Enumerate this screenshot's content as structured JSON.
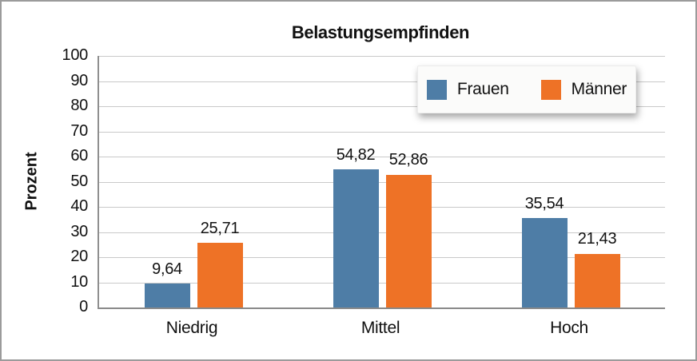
{
  "chart_data": {
    "type": "bar",
    "title": "Belastungsempfinden",
    "xlabel": "",
    "ylabel": "Prozent",
    "ylim": [
      0,
      100
    ],
    "yticks": [
      0,
      10,
      20,
      30,
      40,
      50,
      60,
      70,
      80,
      90,
      100
    ],
    "grid": true,
    "legend_position": "top-right-inside",
    "categories": [
      "Niedrig",
      "Mittel",
      "Hoch"
    ],
    "series": [
      {
        "name": "Frauen",
        "color": "#4e7da6",
        "values": [
          9.64,
          54.82,
          35.54
        ],
        "value_labels": [
          "9,64",
          "54,82",
          "35,54"
        ]
      },
      {
        "name": "Männer",
        "color": "#ee7226",
        "values": [
          25.71,
          52.86,
          21.43
        ],
        "value_labels": [
          "25,71",
          "52,86",
          "21,43"
        ]
      }
    ]
  },
  "colors": {
    "frauen_blue": "#4e7da6",
    "maenner_orange": "#ee7226",
    "gridline_gray": "#c9c9c9",
    "axis_gray": "#8f8f8f",
    "outer_border_gray": "#9b9b9b"
  }
}
